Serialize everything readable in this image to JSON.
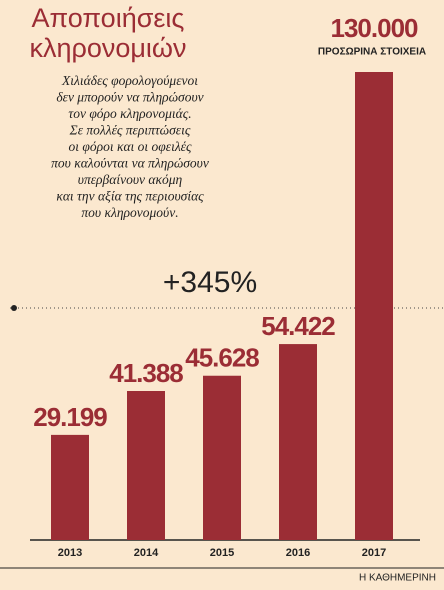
{
  "chart_data": {
    "type": "bar",
    "title": [
      "Αποποιήσεις",
      "κληρονομιών"
    ],
    "subtitle": [
      "Χιλιάδες φορολογούμενοι",
      "δεν μπορούν να πληρώσουν",
      "τον φόρο κληρονομιάς.",
      "Σε πολλές περιπτώσεις",
      "οι φόροι και οι οφειλές",
      "που καλούνται να πληρώσουν",
      "υπερβαίνουν ακόμη",
      "και την αξία της περιουσίας",
      "που κληρονομούν."
    ],
    "annotation": "+345%",
    "note": "ΠΡΟΣΩΡΙΝΑ ΣΤΟΙΧΕΙΑ",
    "source": "Η ΚΑΘΗΜΕΡΙΝΗ",
    "categories": [
      "2013",
      "2014",
      "2015",
      "2016",
      "2017"
    ],
    "values": [
      29199,
      41388,
      45628,
      54422,
      130000
    ],
    "value_labels": [
      "29.199",
      "41.388",
      "45.628",
      "54.422",
      "130.000"
    ],
    "color": "#9b2d35"
  }
}
